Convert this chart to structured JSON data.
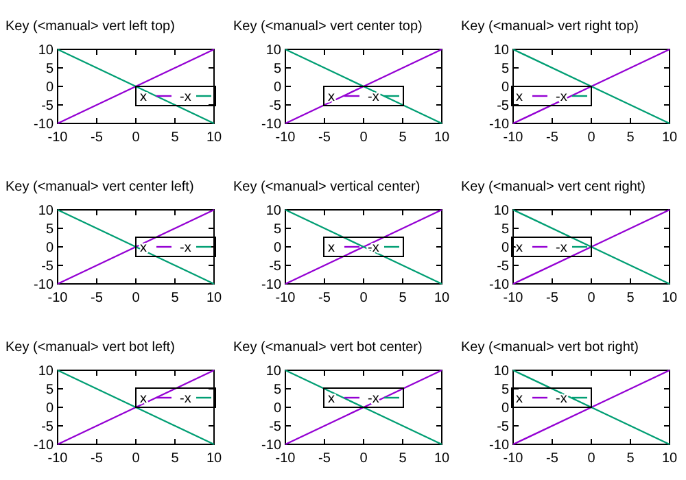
{
  "chart_data": [
    {
      "type": "line",
      "title": "Key (<manual> vert left top)",
      "x": [
        -10,
        0,
        10
      ],
      "xlim": [
        -10,
        10
      ],
      "ylim": [
        -10,
        10
      ],
      "xticks": [
        -10,
        -5,
        0,
        5,
        10
      ],
      "yticks": [
        -10,
        -5,
        0,
        5,
        10
      ],
      "legend": "bottom right",
      "series": [
        {
          "name": "x",
          "color": "#9400d3",
          "values": [
            -10,
            0,
            10
          ]
        },
        {
          "name": "-x",
          "color": "#009e73",
          "values": [
            10,
            0,
            -10
          ]
        }
      ]
    },
    {
      "type": "line",
      "title": "Key (<manual> vert center top)",
      "x": [
        -10,
        0,
        10
      ],
      "xlim": [
        -10,
        10
      ],
      "ylim": [
        -10,
        10
      ],
      "xticks": [
        -10,
        -5,
        0,
        5,
        10
      ],
      "yticks": [
        -10,
        -5,
        0,
        5,
        10
      ],
      "legend": "bottom",
      "series": [
        {
          "name": "x",
          "color": "#9400d3",
          "values": [
            -10,
            0,
            10
          ]
        },
        {
          "name": "-x",
          "color": "#009e73",
          "values": [
            10,
            0,
            -10
          ]
        }
      ]
    },
    {
      "type": "line",
      "title": "Key (<manual> vert right top)",
      "x": [
        -10,
        0,
        10
      ],
      "xlim": [
        -10,
        10
      ],
      "ylim": [
        -10,
        10
      ],
      "xticks": [
        -10,
        -5,
        0,
        5,
        10
      ],
      "yticks": [
        -10,
        -5,
        0,
        5,
        10
      ],
      "legend": "bottom left",
      "series": [
        {
          "name": "x",
          "color": "#9400d3",
          "values": [
            -10,
            0,
            10
          ]
        },
        {
          "name": "-x",
          "color": "#009e73",
          "values": [
            10,
            0,
            -10
          ]
        }
      ]
    },
    {
      "type": "line",
      "title": "Key (<manual> vert center left)",
      "x": [
        -10,
        0,
        10
      ],
      "xlim": [
        -10,
        10
      ],
      "ylim": [
        -10,
        10
      ],
      "xticks": [
        -10,
        -5,
        0,
        5,
        10
      ],
      "yticks": [
        -10,
        -5,
        0,
        5,
        10
      ],
      "legend": "right",
      "series": [
        {
          "name": "x",
          "color": "#9400d3",
          "values": [
            -10,
            0,
            10
          ]
        },
        {
          "name": "-x",
          "color": "#009e73",
          "values": [
            10,
            0,
            -10
          ]
        }
      ]
    },
    {
      "type": "line",
      "title": "Key (<manual> vertical center)",
      "x": [
        -10,
        0,
        10
      ],
      "xlim": [
        -10,
        10
      ],
      "ylim": [
        -10,
        10
      ],
      "xticks": [
        -10,
        -5,
        0,
        5,
        10
      ],
      "yticks": [
        -10,
        -5,
        0,
        5,
        10
      ],
      "legend": "center",
      "series": [
        {
          "name": "x",
          "color": "#9400d3",
          "values": [
            -10,
            0,
            10
          ]
        },
        {
          "name": "-x",
          "color": "#009e73",
          "values": [
            10,
            0,
            -10
          ]
        }
      ]
    },
    {
      "type": "line",
      "title": "Key (<manual> vert cent right)",
      "x": [
        -10,
        0,
        10
      ],
      "xlim": [
        -10,
        10
      ],
      "ylim": [
        -10,
        10
      ],
      "xticks": [
        -10,
        -5,
        0,
        5,
        10
      ],
      "yticks": [
        -10,
        -5,
        0,
        5,
        10
      ],
      "legend": "left",
      "series": [
        {
          "name": "x",
          "color": "#9400d3",
          "values": [
            -10,
            0,
            10
          ]
        },
        {
          "name": "-x",
          "color": "#009e73",
          "values": [
            10,
            0,
            -10
          ]
        }
      ]
    },
    {
      "type": "line",
      "title": "Key (<manual> vert bot left)",
      "x": [
        -10,
        0,
        10
      ],
      "xlim": [
        -10,
        10
      ],
      "ylim": [
        -10,
        10
      ],
      "xticks": [
        -10,
        -5,
        0,
        5,
        10
      ],
      "yticks": [
        -10,
        -5,
        0,
        5,
        10
      ],
      "legend": "top right",
      "series": [
        {
          "name": "x",
          "color": "#9400d3",
          "values": [
            -10,
            0,
            10
          ]
        },
        {
          "name": "-x",
          "color": "#009e73",
          "values": [
            10,
            0,
            -10
          ]
        }
      ]
    },
    {
      "type": "line",
      "title": "Key (<manual> vert bot center)",
      "x": [
        -10,
        0,
        10
      ],
      "xlim": [
        -10,
        10
      ],
      "ylim": [
        -10,
        10
      ],
      "xticks": [
        -10,
        -5,
        0,
        5,
        10
      ],
      "yticks": [
        -10,
        -5,
        0,
        5,
        10
      ],
      "legend": "top",
      "series": [
        {
          "name": "x",
          "color": "#9400d3",
          "values": [
            -10,
            0,
            10
          ]
        },
        {
          "name": "-x",
          "color": "#009e73",
          "values": [
            10,
            0,
            -10
          ]
        }
      ]
    },
    {
      "type": "line",
      "title": "Key (<manual> vert bot right)",
      "x": [
        -10,
        0,
        10
      ],
      "xlim": [
        -10,
        10
      ],
      "ylim": [
        -10,
        10
      ],
      "xticks": [
        -10,
        -5,
        0,
        5,
        10
      ],
      "yticks": [
        -10,
        -5,
        0,
        5,
        10
      ],
      "legend": "top left",
      "series": [
        {
          "name": "x",
          "color": "#9400d3",
          "values": [
            -10,
            0,
            10
          ]
        },
        {
          "name": "-x",
          "color": "#009e73",
          "values": [
            10,
            0,
            -10
          ]
        }
      ]
    }
  ]
}
